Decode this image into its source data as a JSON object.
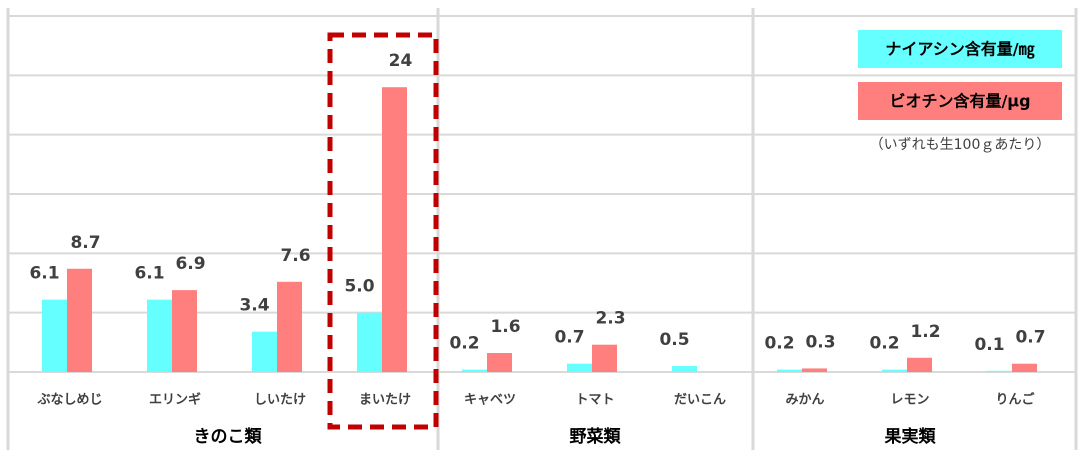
{
  "chart_data": {
    "type": "bar",
    "categories": [
      "ぶなしめじ",
      "エリンギ",
      "しいたけ",
      "まいたけ",
      "キャベツ",
      "トマト",
      "だいこん",
      "みかん",
      "レモン",
      "りんご"
    ],
    "groups": [
      {
        "name": "きのこ類",
        "count": 4
      },
      {
        "name": "野菜類",
        "count": 3
      },
      {
        "name": "果実類",
        "count": 3
      }
    ],
    "series": [
      {
        "name": "ナイアシン含有量/㎎",
        "color": "#66ffff",
        "values": [
          6.1,
          6.1,
          3.4,
          5,
          0.2,
          0.7,
          0.5,
          0.2,
          0.2,
          0.1
        ],
        "value_labels": [
          "6.1",
          "6.1",
          "3.4",
          "5.0",
          "0.2",
          "0.7",
          "0.5",
          "0.2",
          "0.2",
          "0.1"
        ]
      },
      {
        "name": "ビオチン含有量/μg",
        "color": "#ff7f7f",
        "values": [
          8.7,
          6.9,
          7.6,
          24,
          1.6,
          2.3,
          null,
          0.3,
          1.2,
          0.7
        ]
      }
    ],
    "annotation": "（いずれも生100ｇあたり）",
    "ylim": [
      0,
      30
    ],
    "yticks": [
      0,
      5,
      10,
      15,
      20,
      25,
      30
    ],
    "grid": true
  }
}
